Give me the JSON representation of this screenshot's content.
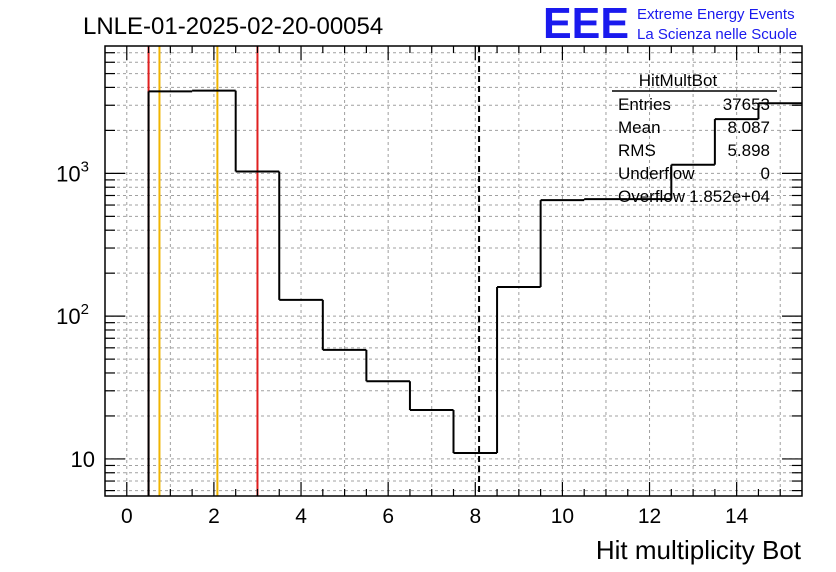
{
  "chart_data": {
    "type": "bar",
    "title": "LNLE-01-2025-02-20-00054",
    "xlabel": "Hit multiplicity Bot",
    "ylabel": "",
    "xlim": [
      -0.5,
      15.5
    ],
    "ylim": [
      5.5,
      7800
    ],
    "yscale": "log",
    "grid": true,
    "x_ticks": [
      "0",
      "2",
      "4",
      "6",
      "8",
      "10",
      "12",
      "14"
    ],
    "x_tick_values": [
      0,
      2,
      4,
      6,
      8,
      10,
      12,
      14
    ],
    "y_ticks": [
      {
        "value": 10,
        "base": "10",
        "exp": ""
      },
      {
        "value": 100,
        "base": "10",
        "exp": "2"
      },
      {
        "value": 1000,
        "base": "10",
        "exp": "3"
      }
    ],
    "bins": {
      "edges": [
        0.5,
        1.5,
        2.5,
        3.5,
        4.5,
        5.5,
        6.5,
        7.5,
        8.5,
        9.5,
        10.5,
        11.5,
        12.5,
        13.5,
        14.5,
        15.5
      ],
      "values": [
        3750,
        3800,
        1030,
        130,
        58,
        35,
        22,
        11,
        160,
        650,
        660,
        660,
        1150,
        2400,
        3100
      ]
    },
    "vertical_lines": [
      {
        "x": 0.5,
        "color": "#e02020",
        "style": "solid"
      },
      {
        "x": 0.75,
        "color": "#f0b400",
        "style": "solid"
      },
      {
        "x": 2.08,
        "color": "#f0b400",
        "style": "solid"
      },
      {
        "x": 3.0,
        "color": "#e02020",
        "style": "solid"
      },
      {
        "x": 8.087,
        "color": "#000000",
        "style": "dashed"
      }
    ],
    "stats_box": {
      "title": "HitMultBot",
      "rows": [
        {
          "label": "Entries",
          "value": "37653"
        },
        {
          "label": "Mean",
          "value": "8.087"
        },
        {
          "label": "RMS",
          "value": "5.898"
        },
        {
          "label": "Underflow",
          "value": "0"
        },
        {
          "label": "Overflow",
          "value": "1.852e+04"
        }
      ]
    }
  },
  "logo": {
    "mark": "EEE",
    "line1": "Extreme Energy Events",
    "line2": "La Scienza nelle Scuole",
    "color": "#1a1aee"
  }
}
